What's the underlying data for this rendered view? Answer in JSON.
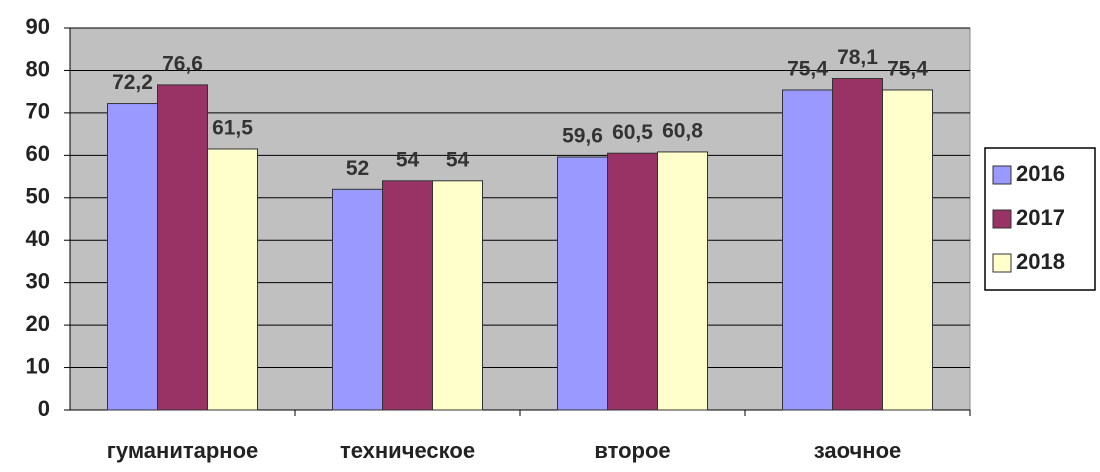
{
  "chart_data": {
    "type": "bar",
    "categories": [
      "гуманитарное",
      "техническое",
      "второе",
      "заочное"
    ],
    "series": [
      {
        "name": "2016",
        "color": "#9999ff",
        "values": [
          72.2,
          52,
          59.6,
          75.4
        ],
        "value_labels": [
          "72,2",
          "52",
          "59,6",
          "75,4"
        ]
      },
      {
        "name": "2017",
        "color": "#993366",
        "values": [
          76.6,
          54,
          60.5,
          78.1
        ],
        "value_labels": [
          "76,6",
          "54",
          "60,5",
          "78,1"
        ]
      },
      {
        "name": "2018",
        "color": "#ffffcc",
        "values": [
          61.5,
          54,
          60.8,
          75.4
        ],
        "value_labels": [
          "61,5",
          "54",
          "60,8",
          "75,4"
        ]
      }
    ],
    "ylim": [
      0,
      90
    ],
    "yticks": [
      0,
      10,
      20,
      30,
      40,
      50,
      60,
      70,
      80,
      90
    ],
    "grid": true,
    "legend": "right"
  }
}
